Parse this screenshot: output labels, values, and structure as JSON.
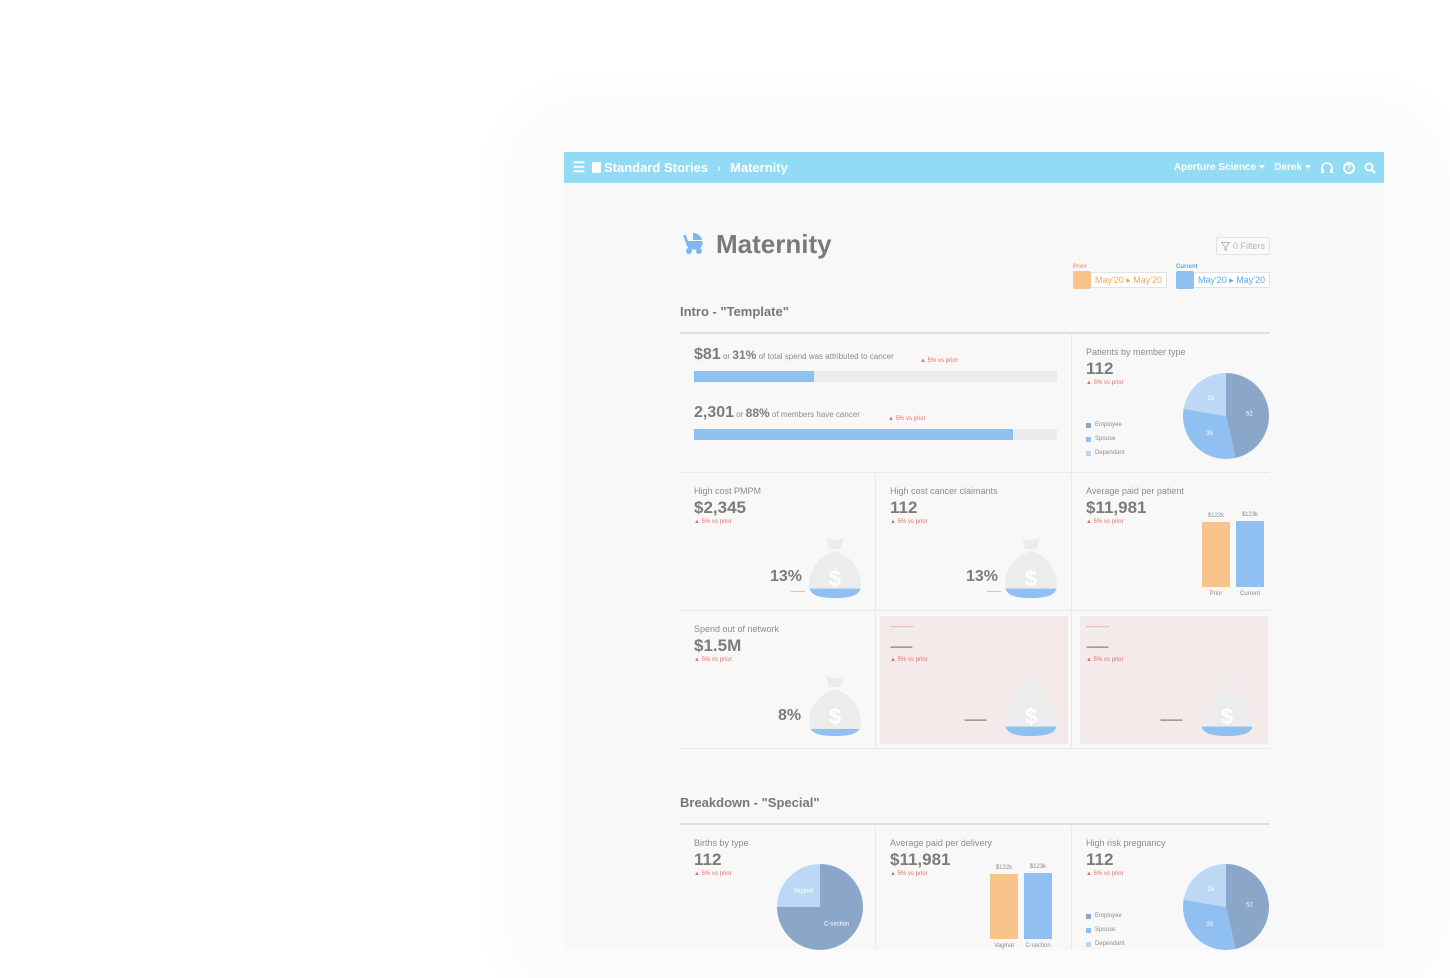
{
  "topbar": {
    "breadcrumb_root": "Standard Stories",
    "breadcrumb_current": "Maternity",
    "org": "Aperture Science",
    "user": "Derek"
  },
  "page": {
    "title": "Maternity",
    "filters_label": "0 Filters",
    "prior_label": "Prior",
    "prior_range": "May'20 ▸ May'20",
    "current_label": "Current",
    "current_range": "May'20 ▸ May'20"
  },
  "colors": {
    "accent": "#92dbf4",
    "prior": "#f9c48c",
    "current": "#90c0f2",
    "employee": "#8aa6c8",
    "spouse": "#90c0f2",
    "dependant": "#bcd8f5",
    "alert": "#e3726f"
  },
  "intro": {
    "section_title": "Intro - \"Template\"",
    "stat1": {
      "value": "$81",
      "or": "or",
      "pct": "31%",
      "text": "of total spend was attributed to cancer",
      "vs": "5% vs prior",
      "progress": 0.33
    },
    "stat2": {
      "value": "2,301",
      "or": "or",
      "pct": "88%",
      "text": "of members have cancer",
      "vs": "5% vs prior",
      "progress": 0.88
    },
    "patients": {
      "label": "Patients by member type",
      "value": "112",
      "vs": "5% vs prior",
      "legend": [
        "Employee",
        "Spouse",
        "Dependant"
      ],
      "slices": [
        52,
        35,
        25
      ]
    },
    "pmpm": {
      "label": "High cost PMPM",
      "value": "$2,345",
      "vs": "5% vs prior",
      "pct": "13%",
      "fill": 0.2
    },
    "claimants": {
      "label": "High cost cancer claimants",
      "value": "112",
      "vs": "5% vs prior",
      "pct": "13%",
      "fill": 0.2
    },
    "avg_paid": {
      "label": "Average paid per patient",
      "value": "$11,981",
      "vs": "5% vs prior",
      "bars": [
        {
          "cat": "Prior",
          "label": "$122k",
          "value": 122
        },
        {
          "cat": "Current",
          "label": "$123k",
          "value": 123
        }
      ]
    },
    "out_network": {
      "label": "Spend out of network",
      "value": "$1.5M",
      "vs": "5% vs prior",
      "pct": "8%",
      "fill": 0.15
    },
    "placeholder1": {
      "label": "----------",
      "value": "------",
      "vs": "5% vs prior",
      "pct": "------",
      "fill": 0.2
    },
    "placeholder2": {
      "label": "----------",
      "value": "------",
      "vs": "5% vs prior",
      "pct": "------",
      "fill": 0.2
    }
  },
  "breakdown": {
    "section_title": "Breakdown - \"Special\"",
    "births": {
      "label": "Births by type",
      "value": "112",
      "vs": "5% vs prior",
      "slices": [
        {
          "name": "C-section",
          "value": 75
        },
        {
          "name": "Vaginal",
          "value": 25
        }
      ]
    },
    "delivery": {
      "label": "Average paid per delivery",
      "value": "$11,981",
      "vs": "5% vs prior",
      "bars": [
        {
          "cat": "Vaginal",
          "label": "$122k",
          "value": 122
        },
        {
          "cat": "C-section",
          "label": "$123k",
          "value": 123
        }
      ]
    },
    "risk": {
      "label": "High risk pregnancy",
      "value": "112",
      "vs": "5% vs prior",
      "legend": [
        "Employee",
        "Spouse",
        "Dependant"
      ],
      "slices": [
        52,
        35,
        25
      ]
    }
  }
}
